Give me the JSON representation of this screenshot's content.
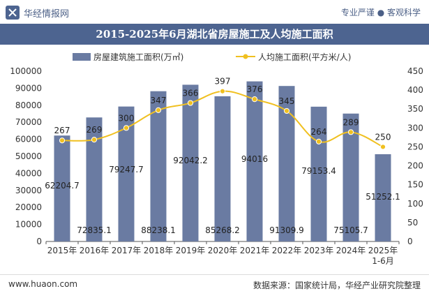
{
  "header": {
    "brand": "华经情报网",
    "tagline": "专业严谨 ● 客观科学",
    "logo_icon": "huajing-logo-icon"
  },
  "footer": {
    "site": "www.huaon.com",
    "source": "数据来源：国家统计局，华经产业研究院整理"
  },
  "colors": {
    "bar": "#6a7ba2",
    "line": "#f0c020",
    "title_bg": "#4d6490",
    "brand": "#4b5f86"
  },
  "chart_data": {
    "type": "bar",
    "title": "2015-2025年6月湖北省房屋施工及人均施工面积",
    "categories": [
      "2015年",
      "2016年",
      "2017年",
      "2018年",
      "2019年",
      "2020年",
      "2021年",
      "2022年",
      "2023年",
      "2024年",
      "2025年\n1-6月"
    ],
    "series": [
      {
        "name": "房屋建筑施工面积(万㎡)",
        "type": "bar",
        "axis": "left",
        "values": [
          62204.7,
          72835.1,
          79247.7,
          88238.1,
          92042.2,
          85268.2,
          94016,
          91309.9,
          79153.4,
          75105.7,
          51252.1
        ],
        "labels": [
          "62204.7",
          "72835.1",
          "79247.7",
          "88238.1",
          "92042.2",
          "85268.2",
          "94016",
          "91309.9",
          "79153.4",
          "75105.7",
          "51252.1"
        ]
      },
      {
        "name": "人均施工面积(平方米/人)",
        "type": "line",
        "axis": "right",
        "values": [
          267,
          269,
          300,
          347,
          366,
          397,
          376,
          345,
          264,
          289,
          250
        ],
        "labels": [
          "267",
          "269",
          "300",
          "347",
          "366",
          "397",
          "376",
          "345",
          "264",
          "289",
          "250"
        ]
      }
    ],
    "y_left": {
      "min": 0,
      "max": 100000,
      "ticks": [
        "0",
        "10000",
        "20000",
        "30000",
        "40000",
        "50000",
        "60000",
        "70000",
        "80000",
        "90000",
        "100000"
      ]
    },
    "y_right": {
      "min": 0,
      "max": 450,
      "ticks": [
        "0",
        "50",
        "100",
        "150",
        "200",
        "250",
        "300",
        "350",
        "400",
        "450"
      ]
    },
    "legend_position": "top",
    "grid": false
  }
}
